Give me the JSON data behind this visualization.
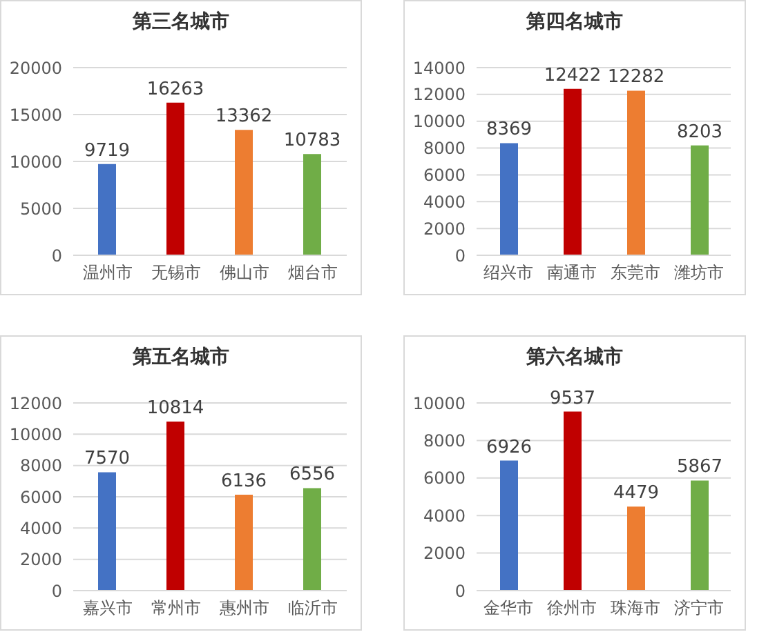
{
  "chart_data": [
    {
      "type": "bar",
      "title": "第三名城市",
      "categories": [
        "温州市",
        "无锡市",
        "佛山市",
        "烟台市"
      ],
      "values": [
        9719,
        16263,
        13362,
        10783
      ],
      "colors": [
        "#4472c4",
        "#c00000",
        "#ed7d31",
        "#70ad47"
      ],
      "ylim": [
        0,
        20000
      ],
      "yticks": [
        0,
        5000,
        10000,
        15000,
        20000
      ],
      "grid": "y",
      "data_labels": true
    },
    {
      "type": "bar",
      "title": "第四名城市",
      "categories": [
        "绍兴市",
        "南通市",
        "东莞市",
        "潍坊市"
      ],
      "values": [
        8369,
        12422,
        12282,
        8203
      ],
      "colors": [
        "#4472c4",
        "#c00000",
        "#ed7d31",
        "#70ad47"
      ],
      "ylim": [
        0,
        14000
      ],
      "yticks": [
        0,
        2000,
        4000,
        6000,
        8000,
        10000,
        12000,
        14000
      ],
      "grid": "y",
      "data_labels": true
    },
    {
      "type": "bar",
      "title": "第五名城市",
      "categories": [
        "嘉兴市",
        "常州市",
        "惠州市",
        "临沂市"
      ],
      "values": [
        7570,
        10814,
        6136,
        6556
      ],
      "colors": [
        "#4472c4",
        "#c00000",
        "#ed7d31",
        "#70ad47"
      ],
      "ylim": [
        0,
        12000
      ],
      "yticks": [
        0,
        2000,
        4000,
        6000,
        8000,
        10000,
        12000
      ],
      "grid": "y",
      "data_labels": true
    },
    {
      "type": "bar",
      "title": "第六名城市",
      "categories": [
        "金华市",
        "徐州市",
        "珠海市",
        "济宁市"
      ],
      "values": [
        6926,
        9537,
        4479,
        5867
      ],
      "colors": [
        "#4472c4",
        "#c00000",
        "#ed7d31",
        "#70ad47"
      ],
      "ylim": [
        0,
        10000
      ],
      "yticks": [
        0,
        2000,
        4000,
        6000,
        8000,
        10000
      ],
      "grid": "y",
      "data_labels": true
    }
  ]
}
